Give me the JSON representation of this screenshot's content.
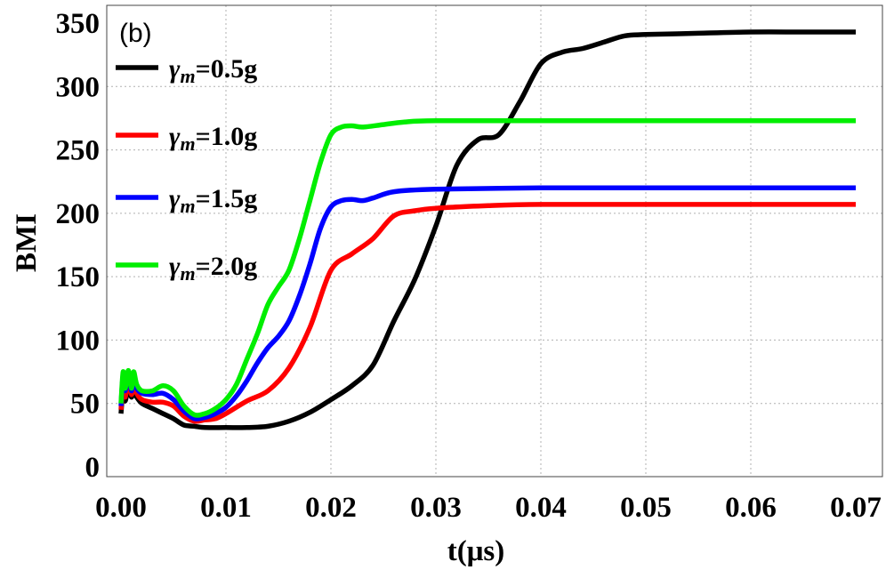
{
  "chart_data": {
    "type": "line",
    "panel_label": "(b)",
    "xlabel": "t(μs)",
    "ylabel": "BMI",
    "xlim": [
      0.0,
      0.07
    ],
    "ylim": [
      0,
      350
    ],
    "xticks": [
      "0.00",
      "0.01",
      "0.02",
      "0.03",
      "0.04",
      "0.05",
      "0.06",
      "0.07"
    ],
    "yticks": [
      "0",
      "50",
      "100",
      "150",
      "200",
      "250",
      "300",
      "350"
    ],
    "grid": true,
    "legend_position": "top-left",
    "series": [
      {
        "name": "γm=0.5g",
        "legend_symbol": "γ",
        "legend_sub": "m",
        "legend_value": "=0.5g",
        "color": "#000000",
        "x": [
          0.0,
          0.0002,
          0.0004,
          0.0007,
          0.001,
          0.0012,
          0.0015,
          0.002,
          0.003,
          0.004,
          0.005,
          0.006,
          0.007,
          0.008,
          0.01,
          0.012,
          0.014,
          0.016,
          0.018,
          0.02,
          0.022,
          0.024,
          0.026,
          0.028,
          0.03,
          0.032,
          0.034,
          0.036,
          0.038,
          0.04,
          0.042,
          0.044,
          0.046,
          0.048,
          0.05,
          0.055,
          0.06,
          0.065,
          0.07
        ],
        "y": [
          42,
          60,
          52,
          62,
          55,
          60,
          55,
          50,
          46,
          42,
          38,
          33,
          32,
          31,
          31,
          31,
          32,
          36,
          43,
          53,
          64,
          80,
          115,
          148,
          190,
          238,
          258,
          262,
          288,
          318,
          327,
          330,
          335,
          340,
          341,
          342,
          343,
          343,
          343
        ]
      },
      {
        "name": "γm=1.0g",
        "legend_symbol": "γ",
        "legend_sub": "m",
        "legend_value": "=1.0g",
        "color": "#ff0000",
        "x": [
          0.0,
          0.0002,
          0.0004,
          0.0007,
          0.001,
          0.0012,
          0.0015,
          0.002,
          0.003,
          0.004,
          0.005,
          0.006,
          0.007,
          0.008,
          0.009,
          0.01,
          0.012,
          0.014,
          0.016,
          0.018,
          0.02,
          0.022,
          0.024,
          0.026,
          0.028,
          0.03,
          0.035,
          0.04,
          0.05,
          0.06,
          0.07
        ],
        "y": [
          45,
          65,
          55,
          68,
          57,
          66,
          58,
          53,
          51,
          51,
          48,
          40,
          36,
          37,
          38,
          42,
          52,
          60,
          78,
          110,
          155,
          168,
          180,
          198,
          202,
          204,
          206,
          207,
          207,
          207,
          207
        ]
      },
      {
        "name": "γm=1.5g",
        "legend_symbol": "γ",
        "legend_sub": "m",
        "legend_value": "=1.5g",
        "color": "#0000ff",
        "x": [
          0.0,
          0.0002,
          0.0004,
          0.0007,
          0.001,
          0.0012,
          0.0015,
          0.002,
          0.003,
          0.004,
          0.005,
          0.006,
          0.007,
          0.008,
          0.009,
          0.01,
          0.011,
          0.012,
          0.013,
          0.014,
          0.015,
          0.016,
          0.017,
          0.018,
          0.019,
          0.02,
          0.021,
          0.022,
          0.023,
          0.024,
          0.026,
          0.03,
          0.04,
          0.05,
          0.06,
          0.07
        ],
        "y": [
          48,
          72,
          60,
          74,
          60,
          72,
          62,
          58,
          57,
          58,
          53,
          44,
          38,
          39,
          42,
          47,
          56,
          68,
          82,
          94,
          103,
          115,
          135,
          160,
          188,
          205,
          210,
          211,
          210,
          212,
          217,
          219,
          220,
          220,
          220,
          220
        ]
      },
      {
        "name": "γm=2.0g",
        "legend_symbol": "γ",
        "legend_sub": "m",
        "legend_value": "=2.0g",
        "color": "#00ee00",
        "x": [
          0.0,
          0.0002,
          0.0004,
          0.0007,
          0.001,
          0.0012,
          0.0015,
          0.002,
          0.003,
          0.004,
          0.005,
          0.006,
          0.007,
          0.008,
          0.009,
          0.01,
          0.011,
          0.012,
          0.013,
          0.014,
          0.015,
          0.016,
          0.017,
          0.018,
          0.019,
          0.02,
          0.021,
          0.022,
          0.023,
          0.025,
          0.027,
          0.03,
          0.04,
          0.05,
          0.06,
          0.07
        ],
        "y": [
          50,
          75,
          62,
          76,
          62,
          75,
          65,
          60,
          60,
          64,
          60,
          48,
          41,
          42,
          46,
          53,
          65,
          85,
          105,
          128,
          142,
          155,
          180,
          210,
          240,
          262,
          268,
          269,
          268,
          270,
          272,
          273,
          273,
          273,
          273,
          273
        ]
      }
    ]
  }
}
